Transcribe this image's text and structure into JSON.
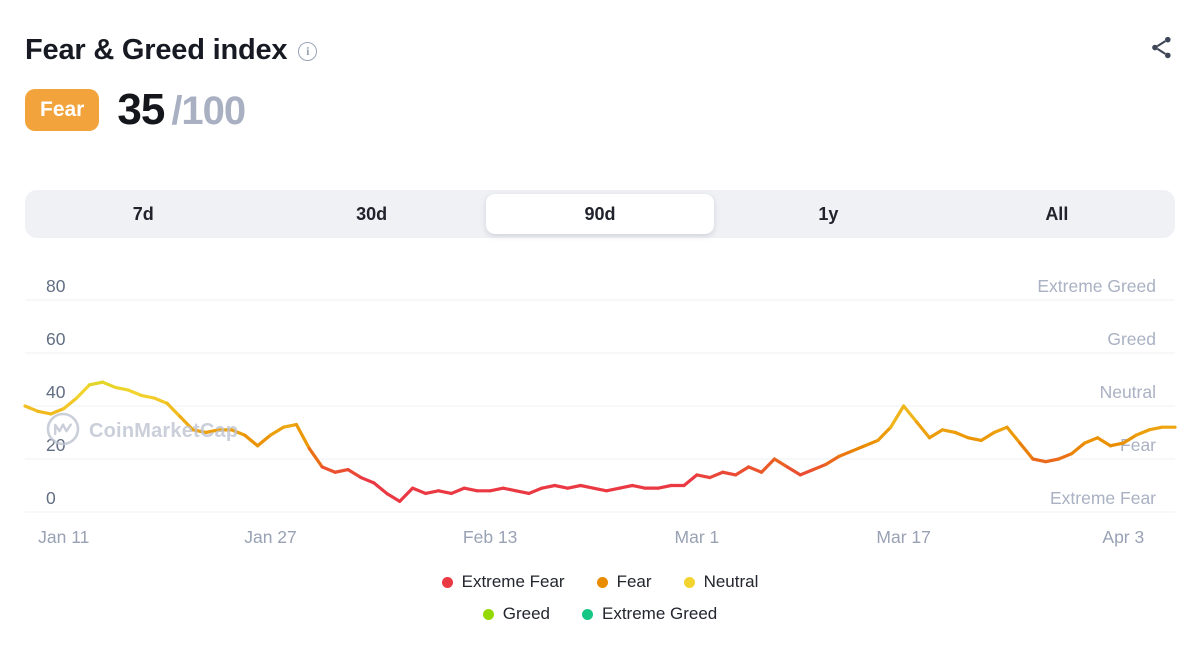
{
  "header": {
    "title": "Fear & Greed index"
  },
  "gauge": {
    "classification": "Fear",
    "value": "35",
    "denominator": "/100",
    "badge_color": "#F3A33C"
  },
  "tabs": [
    {
      "label": "7d",
      "selected": false
    },
    {
      "label": "30d",
      "selected": false
    },
    {
      "label": "90d",
      "selected": true
    },
    {
      "label": "1y",
      "selected": false
    },
    {
      "label": "All",
      "selected": false
    }
  ],
  "watermark": {
    "text": "CoinMarketCap"
  },
  "legend": {
    "row1": [
      {
        "label": "Extreme Fear",
        "color": "#EA3943"
      },
      {
        "label": "Fear",
        "color": "#EA8C00"
      },
      {
        "label": "Neutral",
        "color": "#F3D42F"
      }
    ],
    "row2": [
      {
        "label": "Greed",
        "color": "#93D900"
      },
      {
        "label": "Extreme Greed",
        "color": "#16C784"
      }
    ]
  },
  "chart_data": {
    "type": "line",
    "title": "Fear & Greed index (90d)",
    "ylim": [
      0,
      100
    ],
    "yticks": [
      0,
      20,
      40,
      60,
      80
    ],
    "zone_labels": [
      {
        "value": 0,
        "label": "Extreme Fear"
      },
      {
        "value": 20,
        "label": "Fear"
      },
      {
        "value": 40,
        "label": "Neutral"
      },
      {
        "value": 60,
        "label": "Greed"
      },
      {
        "value": 80,
        "label": "Extreme Greed"
      }
    ],
    "x_tick_labels": [
      "Jan 11",
      "Jan 27",
      "Feb 13",
      "Mar 1",
      "Mar 17",
      "Apr 3"
    ],
    "x_tick_indexes": [
      3,
      19,
      36,
      52,
      68,
      85
    ],
    "values": [
      40,
      38,
      37,
      39,
      43,
      48,
      49,
      47,
      46,
      44,
      43,
      41,
      36,
      31,
      30,
      31,
      31,
      29,
      25,
      29,
      32,
      33,
      24,
      17,
      15,
      16,
      13,
      11,
      7,
      4,
      9,
      7,
      8,
      7,
      9,
      8,
      8,
      9,
      8,
      7,
      9,
      10,
      9,
      10,
      9,
      8,
      9,
      10,
      9,
      9,
      10,
      10,
      14,
      13,
      15,
      14,
      17,
      15,
      20,
      17,
      14,
      16,
      18,
      21,
      23,
      25,
      27,
      32,
      40,
      34,
      28,
      31,
      30,
      28,
      27,
      30,
      32,
      26,
      20,
      19,
      20,
      22,
      26,
      28,
      25,
      26,
      29,
      31,
      32,
      32
    ],
    "color_stops": [
      [
        0,
        "#EA3943"
      ],
      [
        12,
        "#EA3943"
      ],
      [
        25,
        "#EA8C00"
      ],
      [
        45,
        "#F3D42F"
      ],
      [
        65,
        "#93D900"
      ],
      [
        85,
        "#16C784"
      ]
    ],
    "grid": true,
    "legend_position": "bottom"
  }
}
